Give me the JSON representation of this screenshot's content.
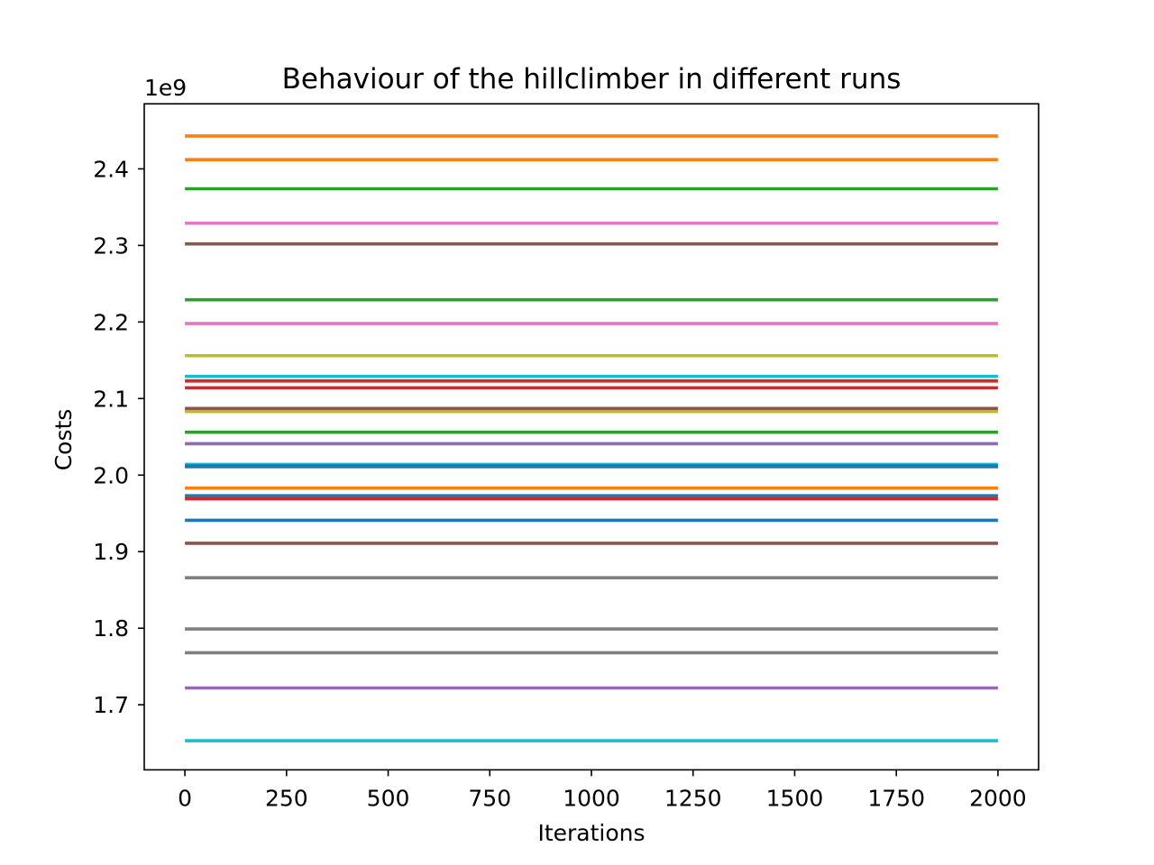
{
  "chart_data": {
    "type": "line",
    "title": "Behaviour of the hillclimber in different runs",
    "xlabel": "Iterations",
    "ylabel": "Costs",
    "y_offset_label": "1e9",
    "xlim": [
      -100,
      2100
    ],
    "ylim": [
      1.615,
      2.485
    ],
    "x_ticks": [
      0,
      250,
      500,
      750,
      1000,
      1250,
      1500,
      1750,
      2000
    ],
    "x_tick_labels": [
      "0",
      "250",
      "500",
      "750",
      "1000",
      "1250",
      "1500",
      "1750",
      "2000"
    ],
    "y_ticks": [
      1.7,
      1.8,
      1.9,
      2.0,
      2.1,
      2.2,
      2.3,
      2.4
    ],
    "y_tick_labels": [
      "1.7",
      "1.8",
      "1.9",
      "2.0",
      "2.1",
      "2.2",
      "2.3",
      "2.4"
    ],
    "y_unit_multiplier": 1000000000,
    "x": [
      0,
      2000
    ],
    "grid": false,
    "legend": "none",
    "series": [
      {
        "values": [
          1.941,
          1.941
        ],
        "color": "#1f77b4"
      },
      {
        "values": [
          2.443,
          2.443
        ],
        "color": "#ff7f0e"
      },
      {
        "values": [
          2.374,
          2.374
        ],
        "color": "#2ca02c"
      },
      {
        "values": [
          2.114,
          2.114
        ],
        "color": "#d62728"
      },
      {
        "values": [
          2.041,
          2.041
        ],
        "color": "#9467bd"
      },
      {
        "values": [
          2.302,
          2.302
        ],
        "color": "#8c564b"
      },
      {
        "values": [
          2.329,
          2.329
        ],
        "color": "#e377c2"
      },
      {
        "values": [
          1.866,
          1.866
        ],
        "color": "#7f7f7f"
      },
      {
        "values": [
          2.085,
          2.085
        ],
        "color": "#bcbd22"
      },
      {
        "values": [
          1.653,
          1.653
        ],
        "color": "#17becf"
      },
      {
        "values": [
          2.011,
          2.011
        ],
        "color": "#1f77b4"
      },
      {
        "values": [
          2.412,
          2.412
        ],
        "color": "#ff7f0e"
      },
      {
        "values": [
          2.229,
          2.229
        ],
        "color": "#2ca02c"
      },
      {
        "values": [
          1.969,
          1.969
        ],
        "color": "#d62728"
      },
      {
        "values": [
          1.722,
          1.722
        ],
        "color": "#9467bd"
      },
      {
        "values": [
          1.911,
          1.911
        ],
        "color": "#8c564b"
      },
      {
        "values": [
          2.198,
          2.198
        ],
        "color": "#e377c2"
      },
      {
        "values": [
          1.799,
          1.799
        ],
        "color": "#7f7f7f"
      },
      {
        "values": [
          2.156,
          2.156
        ],
        "color": "#bcbd22"
      },
      {
        "values": [
          2.129,
          2.129
        ],
        "color": "#17becf"
      },
      {
        "values": [
          1.973,
          1.973
        ],
        "color": "#1f77b4"
      },
      {
        "values": [
          1.983,
          1.983
        ],
        "color": "#ff7f0e"
      },
      {
        "values": [
          2.056,
          2.056
        ],
        "color": "#2ca02c"
      },
      {
        "values": [
          2.123,
          2.123
        ],
        "color": "#d62728"
      },
      {
        "values": [
          2.087,
          2.087
        ],
        "color": "#8c564b"
      },
      {
        "values": [
          1.768,
          1.768
        ],
        "color": "#7f7f7f"
      },
      {
        "values": [
          2.083,
          2.083
        ],
        "color": "#bcbd22"
      },
      {
        "values": [
          2.014,
          2.014
        ],
        "color": "#17becf"
      },
      {
        "values": [
          2.012,
          2.012
        ],
        "color": "#1f77b4"
      }
    ]
  }
}
